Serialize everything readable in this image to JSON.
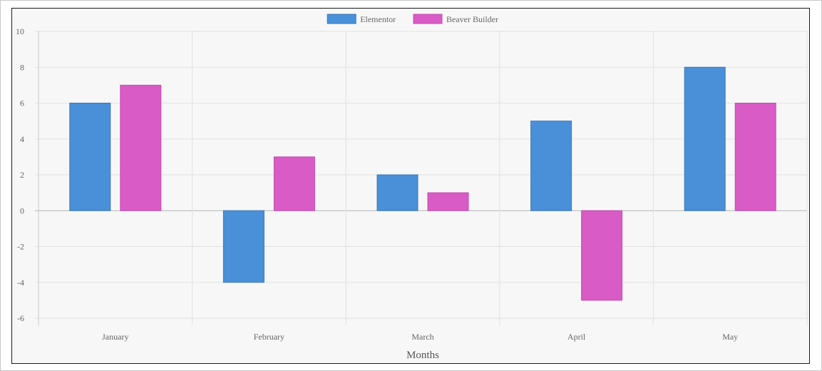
{
  "chart_data": {
    "type": "bar",
    "categories": [
      "January",
      "February",
      "March",
      "April",
      "May"
    ],
    "series": [
      {
        "name": "Elementor",
        "values": [
          6,
          -4,
          2,
          5,
          8
        ],
        "color": "#4a90d9",
        "border": "#3a78b8"
      },
      {
        "name": "Beaver Builder",
        "values": [
          7,
          3,
          1,
          -5,
          6
        ],
        "color": "#d95bc5",
        "border": "#c24db0"
      }
    ],
    "xlabel": "Months",
    "ylabel": "",
    "ylim": [
      -6,
      10
    ],
    "yticks": [
      10,
      8,
      6,
      4,
      2,
      0,
      -2,
      -4,
      -6
    ],
    "grid": true,
    "legend": "top-center"
  }
}
